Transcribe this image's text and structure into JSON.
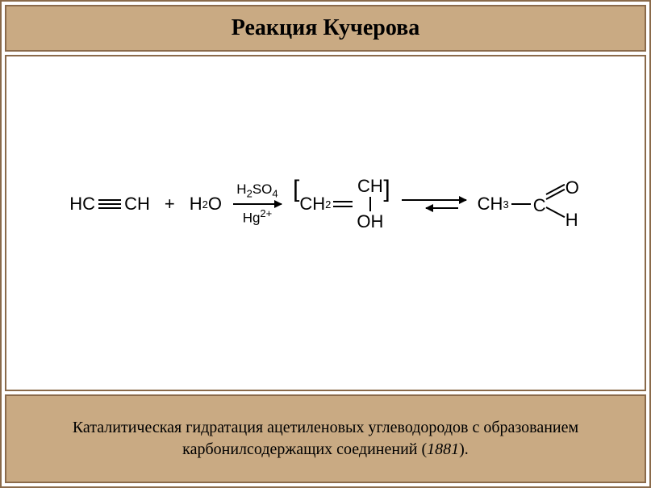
{
  "colors": {
    "frame_border": "#8a6a4a",
    "title_bg": "#c9aa83",
    "caption_bg": "#c9aa83",
    "reaction_bg": "#ffffff",
    "text": "#000000"
  },
  "title": {
    "text": "Реакция Кучерова",
    "fontsize": 28
  },
  "reaction": {
    "reagent1_left": "HC",
    "reagent1_right": "CH",
    "plus": "+",
    "water_h": "H",
    "water_sub": "2",
    "water_o": "O",
    "catalyst_top_h": "H",
    "catalyst_top_sub1": "2",
    "catalyst_top_s": "S",
    "catalyst_top_o": "O",
    "catalyst_top_sub2": "4",
    "catalyst_bot_hg": "Hg",
    "catalyst_bot_sup": "2+",
    "bracket_open": "[",
    "bracket_close": "]",
    "intermediate_ch2": "CH",
    "intermediate_sub2": "2",
    "intermediate_ch": "CH",
    "intermediate_oh": "OH",
    "product_ch3": "CH",
    "product_sub3": "3",
    "product_c": "C",
    "product_o": "O",
    "product_h": "H"
  },
  "caption": {
    "line1": "Каталитическая гидратация ацетиленовых углеводородов с образованием",
    "line2_prefix": "карбонилсодержащих соединений (",
    "year": "1881",
    "line2_suffix": ").",
    "fontsize": 20
  }
}
